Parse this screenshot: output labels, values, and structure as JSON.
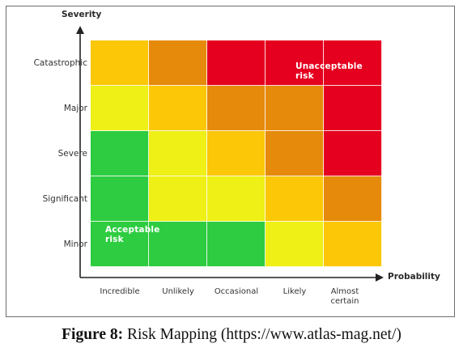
{
  "diagram": {
    "y_axis_title": "Severity",
    "x_axis_title": "Probability",
    "rows": [
      "Catastrophic",
      "Major",
      "Severe",
      "Significant",
      "Minor"
    ],
    "columns": [
      "Incredible",
      "Unlikely",
      "Occasional",
      "Likely",
      "Almost certain"
    ],
    "colors": {
      "green": "#2ecc40",
      "yellow": "#eef016",
      "gold": "#fbc707",
      "orange": "#e58a0b",
      "red": "#e5001f"
    },
    "grid": [
      [
        "gold",
        "orange",
        "red",
        "red",
        "red"
      ],
      [
        "yellow",
        "gold",
        "orange",
        "orange",
        "red"
      ],
      [
        "green",
        "yellow",
        "gold",
        "orange",
        "red"
      ],
      [
        "green",
        "yellow",
        "yellow",
        "gold",
        "orange"
      ],
      [
        "green",
        "green",
        "green",
        "yellow",
        "gold"
      ]
    ],
    "unacceptable_label": "Unacceptable risk",
    "acceptable_label": "Acceptable risk"
  },
  "caption": {
    "figure_label": "Figure 8:",
    "text": "Risk Mapping (https://www.atlas-mag.net/)"
  }
}
